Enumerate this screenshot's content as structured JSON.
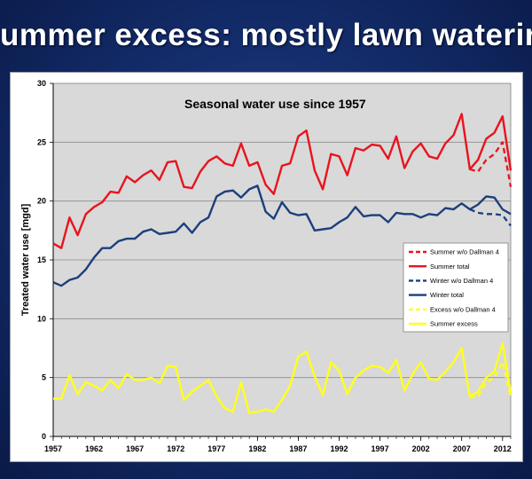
{
  "slide": {
    "title": "ummer excess: mostly lawn waterir"
  },
  "colors": {
    "summer": "#e8141e",
    "winter": "#1c3f7c",
    "excess": "#ffff1e",
    "plot_bg": "#d9d9d9",
    "gridline": "#8c8c8c"
  },
  "chart_data": {
    "type": "line",
    "title": "Seasonal water use since 1957",
    "ylabel": "Treated water use [mgd]",
    "xlabel": "",
    "xlim": [
      1957,
      2013
    ],
    "ylim": [
      0,
      30
    ],
    "x_ticks": [
      "1957",
      "1962",
      "1967",
      "1972",
      "1977",
      "1982",
      "1987",
      "1992",
      "1997",
      "2002",
      "2007",
      "2012"
    ],
    "y_ticks": [
      "0",
      "5",
      "10",
      "15",
      "20",
      "25",
      "30"
    ],
    "grid": "horizontal",
    "legend_position": "right",
    "series": [
      {
        "name": "Summer w/o Dallman 4",
        "color_key": "summer",
        "dashed": true,
        "x": [
          2008,
          2009,
          2010,
          2011,
          2012,
          2013
        ],
        "values": [
          22.7,
          22.5,
          23.5,
          24.0,
          25.0,
          21.2
        ]
      },
      {
        "name": "Summer total",
        "color_key": "summer",
        "dashed": false,
        "x": [
          1957,
          1958,
          1959,
          1960,
          1961,
          1962,
          1963,
          1964,
          1965,
          1966,
          1967,
          1968,
          1969,
          1970,
          1971,
          1972,
          1973,
          1974,
          1975,
          1976,
          1977,
          1978,
          1979,
          1980,
          1981,
          1982,
          1983,
          1984,
          1985,
          1986,
          1987,
          1988,
          1989,
          1990,
          1991,
          1992,
          1993,
          1994,
          1995,
          1996,
          1997,
          1998,
          1999,
          2000,
          2001,
          2002,
          2003,
          2004,
          2005,
          2006,
          2007,
          2008,
          2009,
          2010,
          2011,
          2012,
          2013
        ],
        "values": [
          16.4,
          16.0,
          18.6,
          17.1,
          18.9,
          19.5,
          19.9,
          20.8,
          20.7,
          22.1,
          21.6,
          22.2,
          22.6,
          21.8,
          23.3,
          23.4,
          21.2,
          21.1,
          22.5,
          23.4,
          23.8,
          23.2,
          23.0,
          24.9,
          23.0,
          23.3,
          21.4,
          20.6,
          23.0,
          23.2,
          25.5,
          26.0,
          22.6,
          21.0,
          24.0,
          23.8,
          22.2,
          24.5,
          24.3,
          24.8,
          24.7,
          23.6,
          25.5,
          22.8,
          24.2,
          24.9,
          23.8,
          23.6,
          24.9,
          25.6,
          27.4,
          22.7,
          23.5,
          25.3,
          25.8,
          27.2,
          22.6
        ]
      },
      {
        "name": "Winter w/o Dallman 4",
        "color_key": "winter",
        "dashed": true,
        "x": [
          2008,
          2009,
          2010,
          2011,
          2012,
          2013
        ],
        "values": [
          19.3,
          19.0,
          18.9,
          18.9,
          18.8,
          17.9
        ]
      },
      {
        "name": "Winter total",
        "color_key": "winter",
        "dashed": false,
        "x": [
          1957,
          1958,
          1959,
          1960,
          1961,
          1962,
          1963,
          1964,
          1965,
          1966,
          1967,
          1968,
          1969,
          1970,
          1971,
          1972,
          1973,
          1974,
          1975,
          1976,
          1977,
          1978,
          1979,
          1980,
          1981,
          1982,
          1983,
          1984,
          1985,
          1986,
          1987,
          1988,
          1989,
          1990,
          1991,
          1992,
          1993,
          1994,
          1995,
          1996,
          1997,
          1998,
          1999,
          2000,
          2001,
          2002,
          2003,
          2004,
          2005,
          2006,
          2007,
          2008,
          2009,
          2010,
          2011,
          2012,
          2013
        ],
        "values": [
          13.1,
          12.8,
          13.3,
          13.5,
          14.2,
          15.2,
          16.0,
          16.0,
          16.6,
          16.8,
          16.8,
          17.4,
          17.6,
          17.2,
          17.3,
          17.4,
          18.1,
          17.3,
          18.2,
          18.6,
          20.4,
          20.8,
          20.9,
          20.3,
          21.0,
          21.3,
          19.1,
          18.5,
          19.9,
          19.0,
          18.8,
          18.9,
          17.5,
          17.6,
          17.7,
          18.2,
          18.6,
          19.5,
          18.7,
          18.8,
          18.8,
          18.2,
          19.0,
          18.9,
          18.9,
          18.6,
          18.9,
          18.8,
          19.4,
          19.3,
          19.8,
          19.3,
          19.7,
          20.4,
          20.3,
          19.3,
          18.9
        ]
      },
      {
        "name": "Excess w/o Dallman 4",
        "color_key": "excess",
        "dashed": true,
        "x": [
          2008,
          2009,
          2010,
          2011,
          2012,
          2013
        ],
        "values": [
          3.3,
          3.4,
          4.6,
          5.0,
          6.3,
          3.3
        ]
      },
      {
        "name": "Summer excess",
        "color_key": "excess",
        "dashed": false,
        "x": [
          1957,
          1958,
          1959,
          1960,
          1961,
          1962,
          1963,
          1964,
          1965,
          1966,
          1967,
          1968,
          1969,
          1970,
          1971,
          1972,
          1973,
          1974,
          1975,
          1976,
          1977,
          1978,
          1979,
          1980,
          1981,
          1982,
          1983,
          1984,
          1985,
          1986,
          1987,
          1988,
          1989,
          1990,
          1991,
          1992,
          1993,
          1994,
          1995,
          1996,
          1997,
          1998,
          1999,
          2000,
          2001,
          2002,
          2003,
          2004,
          2005,
          2006,
          2007,
          2008,
          2009,
          2010,
          2011,
          2012,
          2013
        ],
        "values": [
          3.2,
          3.2,
          5.2,
          3.6,
          4.6,
          4.3,
          3.9,
          4.8,
          4.1,
          5.3,
          4.8,
          4.8,
          5.0,
          4.5,
          6.0,
          5.9,
          3.1,
          3.8,
          4.3,
          4.8,
          3.4,
          2.4,
          2.1,
          4.6,
          2.0,
          2.1,
          2.3,
          2.1,
          3.1,
          4.3,
          6.8,
          7.2,
          5.1,
          3.5,
          6.3,
          5.6,
          3.6,
          5.0,
          5.6,
          6.0,
          5.9,
          5.4,
          6.5,
          3.9,
          5.3,
          6.3,
          4.9,
          4.8,
          5.5,
          6.3,
          7.5,
          3.4,
          3.8,
          5.0,
          5.5,
          7.9,
          3.7
        ]
      }
    ]
  }
}
